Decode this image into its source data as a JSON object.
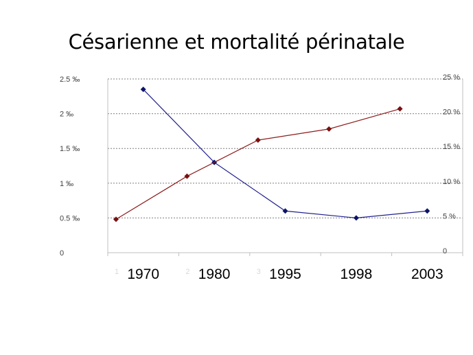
{
  "slide": {
    "title": "Césarienne et mortalité périnatale"
  },
  "chart_data": {
    "type": "line",
    "title": "Césarienne et mortalité périnatale",
    "categories": [
      "1970",
      "1980",
      "1995",
      "1998",
      "2003"
    ],
    "category_index_labels": [
      "1",
      "2",
      "3"
    ],
    "y_left": {
      "ticks": [
        "0",
        "0.5 ‰",
        "1 ‰",
        "1.5 ‰",
        "2 ‰",
        "2.5 ‰"
      ],
      "range": [
        0,
        2.5
      ]
    },
    "y_right": {
      "ticks": [
        "0",
        "5 %",
        "10 %",
        "15 %",
        "20 %",
        "25 %"
      ],
      "range": [
        0,
        25
      ]
    },
    "grid": true,
    "series": [
      {
        "axis": "left",
        "color": "#1f1f8f",
        "marker_color": "#0d1466",
        "x_start_index": 0.5,
        "values": [
          2.35,
          1.3,
          0.6,
          0.5,
          0.6
        ]
      },
      {
        "axis": "right",
        "color": "#8b1a1a",
        "marker_color": "#7a0f0f",
        "x_start_index": 0,
        "values": [
          4.8,
          11,
          16.2,
          17.8,
          20.7
        ]
      }
    ]
  }
}
